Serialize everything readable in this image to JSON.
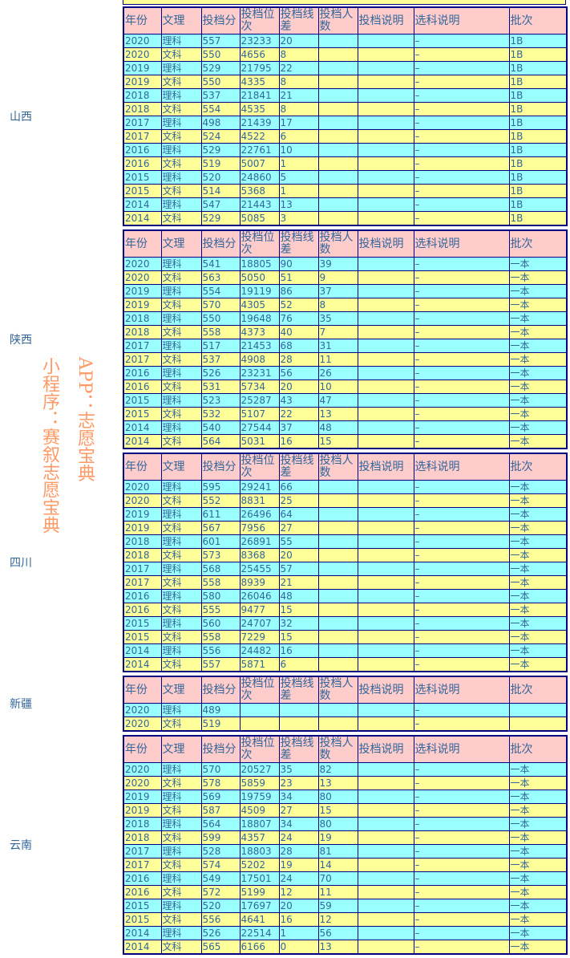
{
  "columns": [
    "年份",
    "文理",
    "投档分",
    "投档位次",
    "投档线差",
    "投档人数",
    "投档说明",
    "选科说明",
    "批次"
  ],
  "colors": {
    "header": "#ffcccc",
    "row_odd": "#99ffff",
    "row_even": "#ffff99",
    "border": "#000080",
    "text": "#336699",
    "watermark": "#ff9966"
  },
  "watermark": [
    "小程序：赛叙志愿宝典",
    "APP：志愿宝典"
  ],
  "provinces": [
    {
      "name": "山西",
      "rows": [
        [
          "2020",
          "理科",
          "557",
          "23233",
          "20",
          "",
          "",
          "–",
          "1B"
        ],
        [
          "2020",
          "文科",
          "550",
          "4656",
          "8",
          "",
          "",
          "–",
          "1B"
        ],
        [
          "2019",
          "理科",
          "529",
          "21795",
          "22",
          "",
          "",
          "–",
          "1B"
        ],
        [
          "2019",
          "文科",
          "550",
          "4335",
          "8",
          "",
          "",
          "–",
          "1B"
        ],
        [
          "2018",
          "理科",
          "537",
          "21841",
          "21",
          "",
          "",
          "–",
          "1B"
        ],
        [
          "2018",
          "文科",
          "554",
          "4535",
          "8",
          "",
          "",
          "–",
          "1B"
        ],
        [
          "2017",
          "理科",
          "498",
          "21439",
          "17",
          "",
          "",
          "–",
          "1B"
        ],
        [
          "2017",
          "文科",
          "524",
          "4522",
          "6",
          "",
          "",
          "–",
          "1B"
        ],
        [
          "2016",
          "理科",
          "529",
          "22761",
          "10",
          "",
          "",
          "–",
          "1B"
        ],
        [
          "2016",
          "文科",
          "519",
          "5007",
          "1",
          "",
          "",
          "–",
          "1B"
        ],
        [
          "2015",
          "理科",
          "520",
          "24860",
          "5",
          "",
          "",
          "–",
          "1B"
        ],
        [
          "2015",
          "文科",
          "514",
          "5368",
          "1",
          "",
          "",
          "–",
          "1B"
        ],
        [
          "2014",
          "理科",
          "547",
          "21443",
          "13",
          "",
          "",
          "–",
          "1B"
        ],
        [
          "2014",
          "文科",
          "529",
          "5085",
          "3",
          "",
          "",
          "–",
          "1B"
        ]
      ]
    },
    {
      "name": "陕西",
      "rows": [
        [
          "2020",
          "理科",
          "541",
          "18805",
          "90",
          "39",
          "",
          "–",
          "一本"
        ],
        [
          "2020",
          "文科",
          "563",
          "5050",
          "51",
          "9",
          "",
          "–",
          "一本"
        ],
        [
          "2019",
          "理科",
          "554",
          "19119",
          "86",
          "37",
          "",
          "–",
          "一本"
        ],
        [
          "2019",
          "文科",
          "570",
          "4305",
          "52",
          "8",
          "",
          "–",
          "一本"
        ],
        [
          "2018",
          "理科",
          "550",
          "19648",
          "76",
          "35",
          "",
          "–",
          "一本"
        ],
        [
          "2018",
          "文科",
          "558",
          "4373",
          "40",
          "7",
          "",
          "–",
          "一本"
        ],
        [
          "2017",
          "理科",
          "517",
          "21453",
          "68",
          "31",
          "",
          "–",
          "一本"
        ],
        [
          "2017",
          "文科",
          "537",
          "4908",
          "28",
          "11",
          "",
          "–",
          "一本"
        ],
        [
          "2016",
          "理科",
          "526",
          "23231",
          "56",
          "26",
          "",
          "–",
          "一本"
        ],
        [
          "2016",
          "文科",
          "531",
          "5734",
          "20",
          "10",
          "",
          "–",
          "一本"
        ],
        [
          "2015",
          "理科",
          "523",
          "25287",
          "43",
          "47",
          "",
          "–",
          "一本"
        ],
        [
          "2015",
          "文科",
          "532",
          "5107",
          "22",
          "13",
          "",
          "–",
          "一本"
        ],
        [
          "2014",
          "理科",
          "540",
          "27544",
          "37",
          "48",
          "",
          "–",
          "一本"
        ],
        [
          "2014",
          "文科",
          "564",
          "5031",
          "16",
          "15",
          "",
          "–",
          "一本"
        ]
      ]
    },
    {
      "name": "四川",
      "rows": [
        [
          "2020",
          "理科",
          "595",
          "29241",
          "66",
          "",
          "",
          "–",
          "一本"
        ],
        [
          "2020",
          "文科",
          "552",
          "8831",
          "25",
          "",
          "",
          "–",
          "一本"
        ],
        [
          "2019",
          "理科",
          "611",
          "26496",
          "64",
          "",
          "",
          "–",
          "一本"
        ],
        [
          "2019",
          "文科",
          "567",
          "7956",
          "27",
          "",
          "",
          "–",
          "一本"
        ],
        [
          "2018",
          "理科",
          "601",
          "26891",
          "55",
          "",
          "",
          "–",
          "一本"
        ],
        [
          "2018",
          "文科",
          "573",
          "8368",
          "20",
          "",
          "",
          "–",
          "一本"
        ],
        [
          "2017",
          "理科",
          "568",
          "25455",
          "57",
          "",
          "",
          "–",
          "一本"
        ],
        [
          "2017",
          "文科",
          "558",
          "8939",
          "21",
          "",
          "",
          "–",
          "一本"
        ],
        [
          "2016",
          "理科",
          "580",
          "26046",
          "48",
          "",
          "",
          "–",
          "一本"
        ],
        [
          "2016",
          "文科",
          "555",
          "9477",
          "15",
          "",
          "",
          "–",
          "一本"
        ],
        [
          "2015",
          "理科",
          "560",
          "24707",
          "32",
          "",
          "",
          "–",
          "一本"
        ],
        [
          "2015",
          "文科",
          "558",
          "7229",
          "15",
          "",
          "",
          "–",
          "一本"
        ],
        [
          "2014",
          "理科",
          "556",
          "24482",
          "16",
          "",
          "",
          "–",
          "一本"
        ],
        [
          "2014",
          "文科",
          "557",
          "5871",
          "6",
          "",
          "",
          "–",
          "一本"
        ]
      ]
    },
    {
      "name": "新疆",
      "rows": [
        [
          "2020",
          "理科",
          "489",
          "",
          "",
          "",
          "",
          "–",
          ""
        ],
        [
          "2020",
          "文科",
          "519",
          "",
          "",
          "",
          "",
          "–",
          ""
        ]
      ]
    },
    {
      "name": "云南",
      "rows": [
        [
          "2020",
          "理科",
          "570",
          "20527",
          "35",
          "82",
          "",
          "–",
          "一本"
        ],
        [
          "2020",
          "文科",
          "578",
          "5859",
          "23",
          "13",
          "",
          "–",
          "一本"
        ],
        [
          "2019",
          "理科",
          "569",
          "19759",
          "34",
          "80",
          "",
          "–",
          "一本"
        ],
        [
          "2019",
          "文科",
          "587",
          "4509",
          "27",
          "15",
          "",
          "–",
          "一本"
        ],
        [
          "2018",
          "理科",
          "564",
          "18807",
          "34",
          "80",
          "",
          "–",
          "一本"
        ],
        [
          "2018",
          "文科",
          "599",
          "4357",
          "24",
          "19",
          "",
          "–",
          "一本"
        ],
        [
          "2017",
          "理科",
          "528",
          "18803",
          "28",
          "81",
          "",
          "–",
          "一本"
        ],
        [
          "2017",
          "文科",
          "574",
          "5202",
          "19",
          "14",
          "",
          "–",
          "一本"
        ],
        [
          "2016",
          "理科",
          "549",
          "17501",
          "24",
          "70",
          "",
          "–",
          "一本"
        ],
        [
          "2016",
          "文科",
          "572",
          "5199",
          "12",
          "11",
          "",
          "–",
          "一本"
        ],
        [
          "2015",
          "理科",
          "520",
          "17697",
          "20",
          "59",
          "",
          "–",
          "一本"
        ],
        [
          "2015",
          "文科",
          "556",
          "4641",
          "16",
          "12",
          "",
          "–",
          "一本"
        ],
        [
          "2014",
          "理科",
          "526",
          "22514",
          "1",
          "56",
          "",
          "–",
          "一本"
        ],
        [
          "2014",
          "文科",
          "565",
          "6166",
          "0",
          "13",
          "",
          "–",
          "一本"
        ]
      ]
    }
  ]
}
